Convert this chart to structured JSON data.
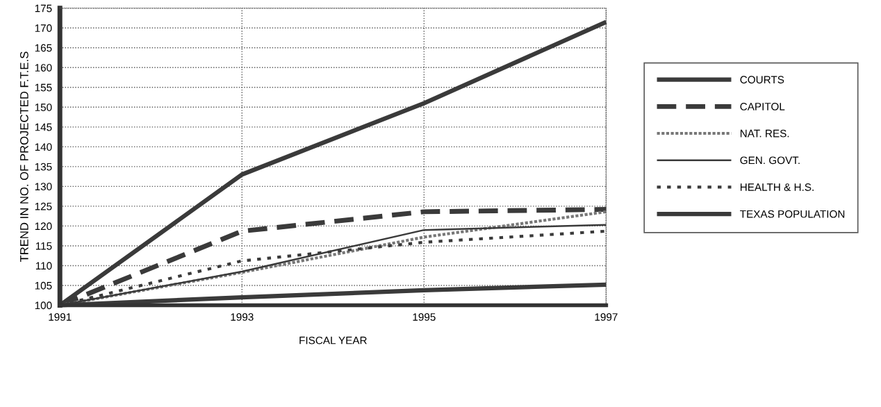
{
  "chart_data": {
    "type": "line",
    "xlabel": "FISCAL YEAR",
    "ylabel": "TREND IN NO. OF PROJECTED F.T.E.S",
    "x": [
      1991,
      1993,
      1995,
      1997
    ],
    "series": [
      {
        "name": "COURTS",
        "color": "#3a3a3a",
        "line_style": "solid",
        "values": [
          100,
          133,
          151,
          171.5
        ]
      },
      {
        "name": "CAPITOL",
        "color": "#3a3a3a",
        "line_style": "dashed",
        "values": [
          100,
          118.7,
          123.6,
          124.2
        ]
      },
      {
        "name": "NAT. RES.",
        "color": "#777777",
        "line_style": "dotted",
        "values": [
          100,
          108.3,
          117.2,
          123.6
        ]
      },
      {
        "name": "GEN. GOVT.",
        "color": "#3a3a3a",
        "line_style": "solid",
        "values": [
          100,
          108.5,
          119,
          120.3
        ]
      },
      {
        "name": "HEALTH & H.S.",
        "color": "#3a3a3a",
        "line_style": "dashed",
        "values": [
          100,
          111.2,
          115.9,
          118.7
        ]
      },
      {
        "name": "TEXAS POPULATION",
        "color": "#3a3a3a",
        "line_style": "solid",
        "values": [
          100,
          102,
          103.8,
          105.2
        ]
      }
    ],
    "xlim": [
      1991,
      1997
    ],
    "xticks": [
      1991,
      1993,
      1995,
      1997
    ],
    "ylim": [
      100,
      175
    ],
    "yticks": [
      100,
      105,
      110,
      115,
      120,
      125,
      130,
      135,
      140,
      145,
      150,
      155,
      160,
      165,
      170,
      175
    ],
    "grid": true,
    "legend": "right",
    "marker": "none"
  }
}
